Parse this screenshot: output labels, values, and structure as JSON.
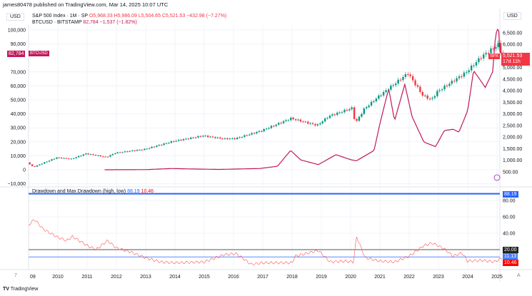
{
  "header": {
    "publisher": "james80478 published on TradingView.com, Mar 14, 2025 10:07 UTC"
  },
  "legend": {
    "spx_name": "S&P 500 Index · 1M · SP",
    "spx_o": "O5,968.33",
    "spx_h": "H5,986.09",
    "spx_l": "L5,504.65",
    "spx_c": "C5,521.53",
    "spx_chg": "−432.98 (−7.27%)",
    "btc_name": "BTCUSD · BITSTAMP",
    "btc_val": "82,784 −1,537 (−1.82%)",
    "dd_name": "Drawdown and Max Drawdown (high, low)",
    "dd_high": "88.19",
    "dd_low": "10.46"
  },
  "labels": {
    "left_currency": "USD",
    "right_currency": "USD",
    "btc_price": "82,784",
    "btc_tag": "BTCUSD",
    "spx_tag": "SPX",
    "spx_price": "5,521.53",
    "spx_countdown": "17d 11h",
    "dd_high_tag": "88.19",
    "dd_20_tag": "20.00",
    "dd_blue_tag": "11.13",
    "dd_low_tag": "10.46",
    "footer": "TradingView",
    "settings": "7"
  },
  "colors": {
    "up": "#089981",
    "down": "#f23645",
    "btc": "#c2185b",
    "drawdown": "#ff5252",
    "max_dd": "#2962ff",
    "blue_line": "#5b8cff",
    "level20": "#555555"
  },
  "chart_data": [
    {
      "type": "candlestick",
      "series": "S&P 500 Index monthly",
      "axis": "right",
      "ylim": [
        0,
        7000
      ],
      "yticks": [
        "500.00",
        "1,000.00",
        "1,500.00",
        "2,000.00",
        "2,500.00",
        "3,000.00",
        "3,500.00",
        "4,000.00",
        "4,500.00",
        "5,000.00",
        "6,000.00",
        "6,500.00"
      ],
      "anchors": [
        [
          2009.0,
          900
        ],
        [
          2009.2,
          700
        ],
        [
          2010.0,
          1110
        ],
        [
          2010.5,
          1050
        ],
        [
          2011.0,
          1280
        ],
        [
          2011.7,
          1130
        ],
        [
          2012.0,
          1310
        ],
        [
          2013.0,
          1470
        ],
        [
          2014.0,
          1820
        ],
        [
          2015.0,
          2050
        ],
        [
          2015.7,
          1920
        ],
        [
          2016.1,
          1930
        ],
        [
          2017.0,
          2270
        ],
        [
          2018.0,
          2800
        ],
        [
          2018.9,
          2500
        ],
        [
          2019.3,
          2900
        ],
        [
          2020.1,
          3250
        ],
        [
          2020.2,
          2580
        ],
        [
          2020.5,
          3200
        ],
        [
          2021.0,
          3750
        ],
        [
          2022.0,
          4750
        ],
        [
          2022.5,
          3800
        ],
        [
          2022.8,
          3600
        ],
        [
          2023.0,
          3950
        ],
        [
          2024.0,
          4800
        ],
        [
          2024.5,
          5450
        ],
        [
          2025.1,
          6000
        ],
        [
          2025.2,
          5521.53
        ]
      ]
    },
    {
      "type": "line",
      "series": "BTCUSD",
      "axis": "left",
      "ylim": [
        -10000,
        110000
      ],
      "yticks": [
        "−10,000",
        "0",
        "10,000",
        "20,000",
        "30,000",
        "40,000",
        "50,000",
        "60,000",
        "70,000",
        "90,000",
        "100,000"
      ],
      "points": [
        [
          2011.6,
          5
        ],
        [
          2013.0,
          100
        ],
        [
          2013.9,
          900
        ],
        [
          2014.5,
          600
        ],
        [
          2015.5,
          250
        ],
        [
          2016.9,
          900
        ],
        [
          2017.5,
          2500
        ],
        [
          2017.95,
          13800
        ],
        [
          2018.3,
          7000
        ],
        [
          2018.9,
          3700
        ],
        [
          2019.5,
          10800
        ],
        [
          2020.0,
          7200
        ],
        [
          2020.2,
          6400
        ],
        [
          2020.8,
          13800
        ],
        [
          2021.0,
          33000
        ],
        [
          2021.3,
          58000
        ],
        [
          2021.5,
          35000
        ],
        [
          2021.85,
          61000
        ],
        [
          2022.1,
          38000
        ],
        [
          2022.5,
          19900
        ],
        [
          2022.9,
          16500
        ],
        [
          2023.2,
          28000
        ],
        [
          2023.5,
          29000
        ],
        [
          2023.7,
          26900
        ],
        [
          2024.0,
          42500
        ],
        [
          2024.2,
          71000
        ],
        [
          2024.6,
          58900
        ],
        [
          2024.85,
          70000
        ],
        [
          2024.95,
          96400
        ],
        [
          2025.05,
          102400
        ],
        [
          2025.1,
          84300
        ],
        [
          2025.2,
          82784
        ]
      ]
    },
    {
      "type": "line",
      "series": "Drawdown",
      "axis": "indicator",
      "ylim": [
        0,
        90
      ],
      "yticks": [
        "80.00",
        "60.00",
        "40.00"
      ],
      "levels": {
        "max": 88.19,
        "twenty": 20,
        "blue": 11.13,
        "low": 10.46
      },
      "points": [
        [
          2009.0,
          50
        ],
        [
          2009.2,
          57
        ],
        [
          2009.5,
          45
        ],
        [
          2010.0,
          35
        ],
        [
          2010.3,
          31
        ],
        [
          2010.5,
          36
        ],
        [
          2011.0,
          25
        ],
        [
          2011.3,
          20
        ],
        [
          2011.7,
          31
        ],
        [
          2012.0,
          22
        ],
        [
          2012.5,
          17
        ],
        [
          2013.0,
          10
        ],
        [
          2013.5,
          5
        ],
        [
          2014.0,
          4
        ],
        [
          2015.0,
          5
        ],
        [
          2015.7,
          14
        ],
        [
          2016.1,
          15
        ],
        [
          2016.6,
          2
        ],
        [
          2017.0,
          4
        ],
        [
          2018.0,
          4
        ],
        [
          2018.1,
          12
        ],
        [
          2018.9,
          19
        ],
        [
          2019.3,
          5
        ],
        [
          2019.8,
          6
        ],
        [
          2020.1,
          5
        ],
        [
          2020.2,
          36
        ],
        [
          2020.5,
          10
        ],
        [
          2021.0,
          6
        ],
        [
          2021.5,
          5
        ],
        [
          2022.0,
          12
        ],
        [
          2022.5,
          25
        ],
        [
          2022.8,
          28
        ],
        [
          2023.2,
          21
        ],
        [
          2023.5,
          12
        ],
        [
          2023.8,
          16
        ],
        [
          2024.0,
          6
        ],
        [
          2024.5,
          7
        ],
        [
          2024.9,
          5
        ],
        [
          2025.2,
          10
        ]
      ]
    },
    {
      "type": "axis",
      "xticks": [
        "09",
        "2010",
        "2011",
        "2012",
        "2013",
        "2014",
        "2015",
        "2016",
        "2017",
        "2018",
        "2019",
        "2020",
        "2021",
        "2022",
        "2023",
        "2024",
        "2025"
      ]
    }
  ]
}
